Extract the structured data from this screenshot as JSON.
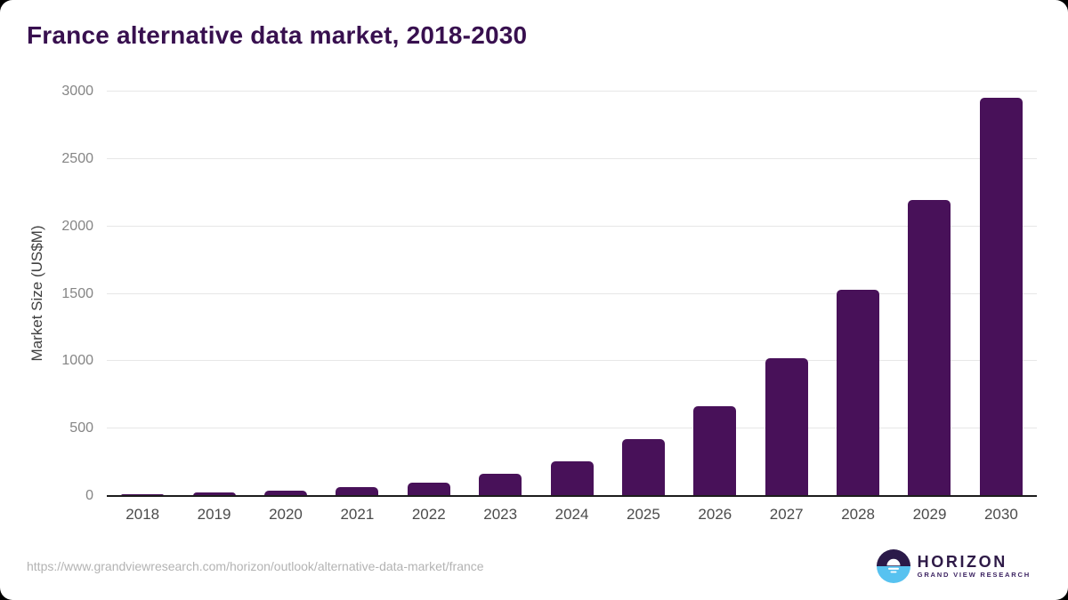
{
  "title": "France alternative data market, 2018-2030",
  "source_url": "https://www.grandviewresearch.com/horizon/outlook/alternative-data-market/france",
  "branding": {
    "name": "HORIZON",
    "tagline": "GRAND VIEW RESEARCH",
    "logo_icon": "horizon-sun-circle-icon",
    "logo_top_color": "#2b1a49",
    "logo_bottom_color": "#57c2f0"
  },
  "colors": {
    "bar": "#481159",
    "title_text": "#38104f",
    "gridline": "#e7e7e7",
    "axis_line": "#1c1c1c"
  },
  "chart_data": {
    "type": "bar",
    "title": "France alternative data market, 2018-2030",
    "categories": [
      "2018",
      "2019",
      "2020",
      "2021",
      "2022",
      "2023",
      "2024",
      "2025",
      "2026",
      "2027",
      "2028",
      "2029",
      "2030"
    ],
    "values": [
      15,
      29,
      42,
      65,
      97,
      162,
      259,
      420,
      667,
      1022,
      1531,
      2198,
      2951
    ],
    "xlabel": "",
    "ylabel": "Market Size (US$M)",
    "ylim": [
      0,
      3000
    ],
    "yticks": [
      0,
      500,
      1000,
      1500,
      2000,
      2500,
      3000
    ],
    "grid": "horizontal",
    "legend": "none",
    "bar_color": "#481159"
  }
}
